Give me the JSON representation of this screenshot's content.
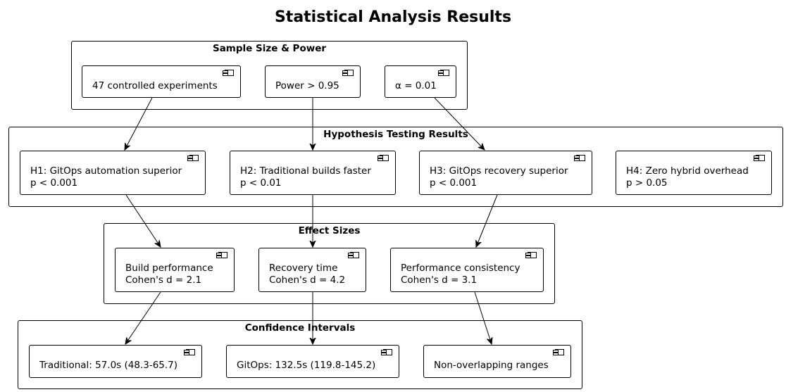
{
  "title": "Statistical Analysis Results",
  "packages": {
    "sample": {
      "label": "Sample Size & Power",
      "nodes": {
        "experiments": "47 controlled experiments",
        "power": "Power > 0.95",
        "alpha": "α = 0.01"
      }
    },
    "hypothesis": {
      "label": "Hypothesis Testing Results",
      "nodes": {
        "h1": {
          "line1": "H1: GitOps automation superior",
          "line2": "p < 0.001"
        },
        "h2": {
          "line1": "H2: Traditional builds faster",
          "line2": "p < 0.01"
        },
        "h3": {
          "line1": "H3: GitOps recovery superior",
          "line2": "p < 0.001"
        },
        "h4": {
          "line1": "H4: Zero hybrid overhead",
          "line2": "p > 0.05"
        }
      }
    },
    "effect": {
      "label": "Effect Sizes",
      "nodes": {
        "build": {
          "line1": "Build performance",
          "line2": "Cohen's d = 2.1"
        },
        "recovery": {
          "line1": "Recovery time",
          "line2": "Cohen's d = 4.2"
        },
        "consistency": {
          "line1": "Performance consistency",
          "line2": "Cohen's d = 3.1"
        }
      }
    },
    "confidence": {
      "label": "Confidence Intervals",
      "nodes": {
        "traditional": "Traditional: 57.0s (48.3-65.7)",
        "gitops": "GitOps: 132.5s (119.8-145.2)",
        "nonoverlap": "Non-overlapping ranges"
      }
    }
  },
  "edges": [
    {
      "from": "47 controlled experiments",
      "to": "H1: GitOps automation superior"
    },
    {
      "from": "Power > 0.95",
      "to": "H2: Traditional builds faster"
    },
    {
      "from": "α = 0.01",
      "to": "H3: GitOps recovery superior"
    },
    {
      "from": "H1: GitOps automation superior",
      "to": "Build performance"
    },
    {
      "from": "H2: Traditional builds faster",
      "to": "Recovery time"
    },
    {
      "from": "H3: GitOps recovery superior",
      "to": "Performance consistency"
    },
    {
      "from": "Build performance",
      "to": "Traditional: 57.0s (48.3-65.7)"
    },
    {
      "from": "Recovery time",
      "to": "GitOps: 132.5s (119.8-145.2)"
    },
    {
      "from": "Performance consistency",
      "to": "Non-overlapping ranges"
    }
  ]
}
